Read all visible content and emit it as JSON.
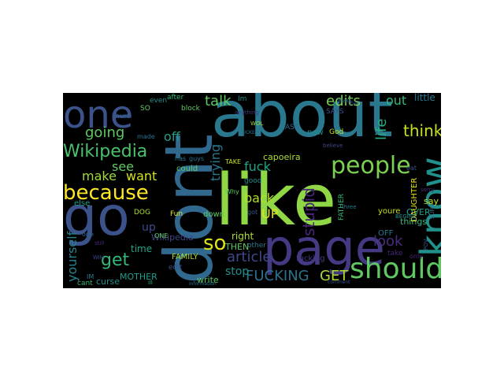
{
  "words": [
    {
      "text": "like",
      "color": "#8fd744"
    },
    {
      "text": "dont",
      "color": "#31688e"
    },
    {
      "text": "about",
      "color": "#2a788e"
    },
    {
      "text": "page",
      "color": "#443983"
    },
    {
      "text": "go",
      "color": "#3b528b"
    },
    {
      "text": "know",
      "color": "#21918c"
    },
    {
      "text": "one",
      "color": "#3b528b"
    },
    {
      "text": "should",
      "color": "#5ec962"
    },
    {
      "text": "people",
      "color": "#7ad151"
    },
    {
      "text": "because",
      "color": "#fde725"
    },
    {
      "text": "Wikipedia",
      "color": "#4ac16d"
    },
    {
      "text": "think",
      "color": "#c8e020"
    },
    {
      "text": "so",
      "color": "#dde318"
    },
    {
      "text": "get",
      "color": "#35b779"
    },
    {
      "text": "article",
      "color": "#3e4989"
    },
    {
      "text": "FUCKING",
      "color": "#2c728e"
    },
    {
      "text": "GET",
      "color": "#addc30"
    },
    {
      "text": "stupid",
      "color": "#482677"
    },
    {
      "text": "look",
      "color": "#472d7b"
    },
    {
      "text": "going",
      "color": "#5ec962"
    },
    {
      "text": "edits",
      "color": "#7ad151"
    },
    {
      "text": "talk",
      "color": "#5ec962"
    },
    {
      "text": "out",
      "color": "#35b779"
    },
    {
      "text": "life",
      "color": "#28ae80"
    },
    {
      "text": "trying",
      "color": "#2a788e"
    },
    {
      "text": "fuck",
      "color": "#20a386"
    },
    {
      "text": "make",
      "color": "#9fda3a"
    },
    {
      "text": "want",
      "color": "#d2e21b"
    },
    {
      "text": "see",
      "color": "#5ec962"
    },
    {
      "text": "off",
      "color": "#1f9e89"
    },
    {
      "text": "back",
      "color": "#b5de2b"
    },
    {
      "text": "UP",
      "color": "#e5e419"
    },
    {
      "text": "yourself",
      "color": "#26828e"
    },
    {
      "text": "up",
      "color": "#3e4989"
    },
    {
      "text": "stop",
      "color": "#21918c"
    },
    {
      "text": "time",
      "color": "#20a486"
    },
    {
      "text": "little",
      "color": "#2a788e"
    },
    {
      "text": "OVER",
      "color": "#1f9e89"
    },
    {
      "text": "say",
      "color": "#c8e020"
    },
    {
      "text": "things",
      "color": "#35b779"
    },
    {
      "text": "OFF",
      "color": "#2a788e"
    },
    {
      "text": "right",
      "color": "#b5de2b"
    },
    {
      "text": "THEN",
      "color": "#5ec962"
    },
    {
      "text": "capoeira",
      "color": "#addc30"
    },
    {
      "text": "fucking",
      "color": "#443983"
    },
    {
      "text": "write",
      "color": "#5ec962"
    },
    {
      "text": "curse",
      "color": "#21918c"
    },
    {
      "text": "MOTHER",
      "color": "#1f9e89"
    },
    {
      "text": "DAUGHTER",
      "color": "#e5e419"
    },
    {
      "text": "FATHER",
      "color": "#35b779"
    },
    {
      "text": "FAMILY",
      "color": "#addc30"
    },
    {
      "text": "youre",
      "color": "#c8e020"
    },
    {
      "text": "Wikipedia",
      "color": "#3e4989"
    },
    {
      "text": "hurt",
      "color": "#31688e"
    },
    {
      "text": "even",
      "color": "#21918c"
    },
    {
      "text": "after",
      "color": "#35b779"
    },
    {
      "text": "block",
      "color": "#5ec962"
    },
    {
      "text": "made",
      "color": "#2c728e"
    },
    {
      "text": "could",
      "color": "#5ec962"
    },
    {
      "text": "good",
      "color": "#21918c"
    },
    {
      "text": "edit",
      "color": "#3b528b"
    },
    {
      "text": "down",
      "color": "#5ec962"
    },
    {
      "text": "Fun",
      "color": "#dde318"
    },
    {
      "text": "else",
      "color": "#1f9e89"
    },
    {
      "text": "cant",
      "color": "#35b779"
    },
    {
      "text": "DOG",
      "color": "#addc30"
    },
    {
      "text": "ASS",
      "color": "#31688e"
    },
    {
      "text": "SAYS",
      "color": "#3b528b"
    },
    {
      "text": "God",
      "color": "#c8e020"
    },
    {
      "text": "now",
      "color": "#21918c"
    },
    {
      "text": "other",
      "color": "#2a788e"
    },
    {
      "text": "take",
      "color": "#482677"
    },
    {
      "text": "Im",
      "color": "#21918c"
    },
    {
      "text": "SO",
      "color": "#5ec962"
    },
    {
      "text": "IM",
      "color": "#2a788e"
    },
    {
      "text": "guys",
      "color": "#2c728e"
    },
    {
      "text": "lead",
      "color": "#31688e"
    },
    {
      "text": "one",
      "color": "#31688e"
    },
    {
      "text": "got",
      "color": "#3b528b"
    },
    {
      "text": "eat",
      "color": "#3b528b"
    },
    {
      "text": "only",
      "color": "#482677"
    },
    {
      "text": "ONE",
      "color": "#5ec962"
    },
    {
      "text": "sorry",
      "color": "#472d7b"
    },
    {
      "text": "believe",
      "color": "#3e4989"
    },
    {
      "text": "TAKE",
      "color": "#c8e020"
    },
    {
      "text": "has",
      "color": "#2a788e"
    },
    {
      "text": "Why",
      "color": "#5ec962"
    },
    {
      "text": "WOL",
      "color": "#9fda3a"
    },
    {
      "text": "POV",
      "color": "#3b528b"
    },
    {
      "text": "SUNS",
      "color": "#31688e"
    },
    {
      "text": "BEGINS",
      "color": "#21918c"
    },
    {
      "text": "Wiki",
      "color": "#3e4989"
    },
    {
      "text": "still",
      "color": "#482677"
    },
    {
      "text": "EAT",
      "color": "#3b528b"
    },
    {
      "text": "three",
      "color": "#2a788e"
    },
    {
      "text": "FUCKED",
      "color": "#2c728e"
    },
    {
      "text": "anything",
      "color": "#443983"
    },
    {
      "text": "ill",
      "color": "#35b779"
    },
    {
      "text": "comment",
      "color": "#3b528b"
    },
    {
      "text": "information",
      "color": "#2a788e"
    },
    {
      "text": "means",
      "color": "#31688e"
    }
  ]
}
